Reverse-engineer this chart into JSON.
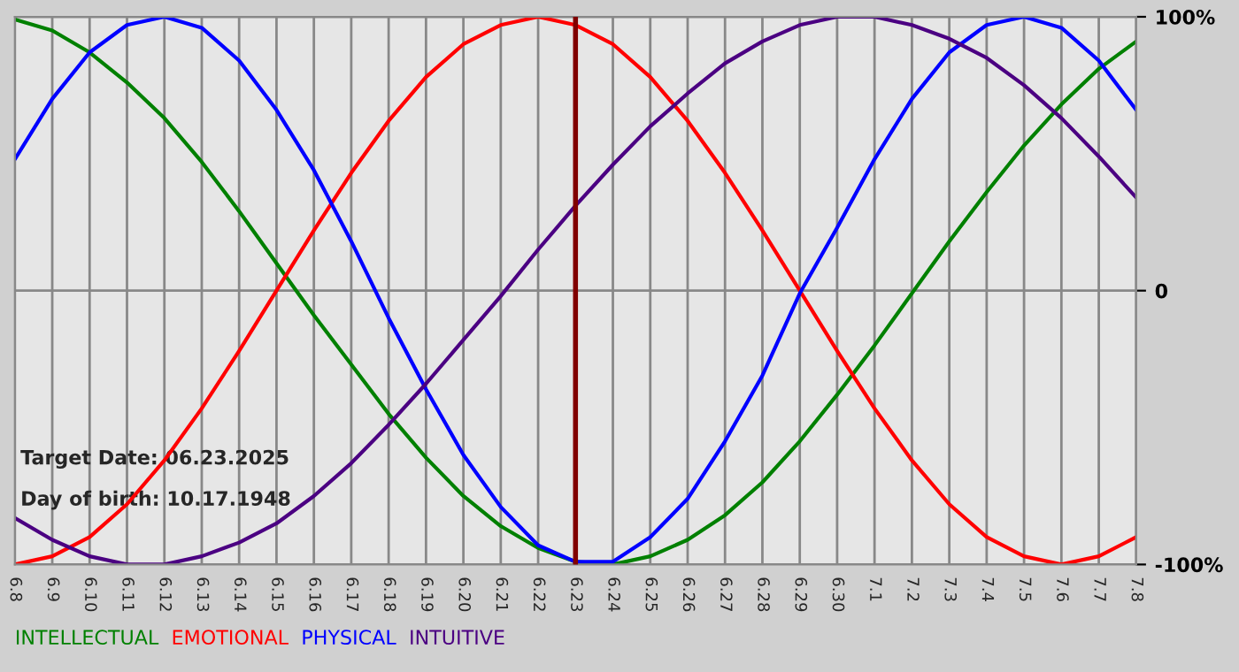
{
  "chart_data": {
    "type": "line",
    "categories": [
      "6.8",
      "6.9",
      "6.10",
      "6.11",
      "6.12",
      "6.13",
      "6.14",
      "6.15",
      "6.16",
      "6.17",
      "6.18",
      "6.19",
      "6.20",
      "6.21",
      "6.22",
      "6.23",
      "6.24",
      "6.25",
      "6.26",
      "6.27",
      "6.28",
      "6.29",
      "6.30",
      "7.1",
      "7.2",
      "7.3",
      "7.4",
      "7.5",
      "7.6",
      "7.7",
      "7.8"
    ],
    "series": [
      {
        "name": "INTELLECTUAL",
        "color": "#008000",
        "values": [
          99,
          95,
          87,
          76,
          63,
          47,
          29,
          10,
          -9,
          -27,
          -45,
          -61,
          -75,
          -86,
          -94,
          -99,
          -100,
          -97,
          -91,
          -82,
          -70,
          -55,
          -38,
          -20,
          -1,
          18,
          36,
          53,
          68,
          81,
          91
        ]
      },
      {
        "name": "EMOTIONAL",
        "color": "#ff0000",
        "values": [
          -100,
          -97,
          -90,
          -78,
          -62,
          -43,
          -22,
          0,
          22,
          43,
          62,
          78,
          90,
          97,
          100,
          97,
          90,
          78,
          62,
          43,
          22,
          0,
          -22,
          -43,
          -62,
          -78,
          -90,
          -97,
          -100,
          -97,
          -90
        ]
      },
      {
        "name": "PHYSICAL",
        "color": "#0000ff",
        "values": [
          48,
          70,
          87,
          97,
          100,
          96,
          84,
          66,
          44,
          18,
          -10,
          -36,
          -60,
          -79,
          -93,
          -99,
          -99,
          -90,
          -76,
          -55,
          -31,
          -1,
          23,
          48,
          70,
          87,
          97,
          100,
          96,
          84,
          66
        ]
      },
      {
        "name": "INTUITIVE",
        "color": "#4b0082",
        "values": [
          -83,
          -91,
          -97,
          -100,
          -100,
          -97,
          -92,
          -85,
          -75,
          -63,
          -49,
          -34,
          -18,
          -2,
          15,
          31,
          46,
          60,
          72,
          83,
          91,
          97,
          100,
          100,
          97,
          92,
          85,
          75,
          63,
          49,
          34
        ]
      }
    ],
    "ylim": [
      -100,
      100
    ],
    "yticks": [
      {
        "value": 100,
        "label": "100%"
      },
      0,
      {
        "value": -100,
        "label": "-100%"
      }
    ],
    "grid": true,
    "legend": "bottom",
    "marker": "none",
    "line_style": "solid",
    "ref_lines": [
      {
        "axis": "x",
        "value": "6.23",
        "color": "#800000"
      }
    ],
    "annotations": [
      "Target Date: 06.23.2025",
      "Day of birth: 10.17.1948"
    ]
  }
}
